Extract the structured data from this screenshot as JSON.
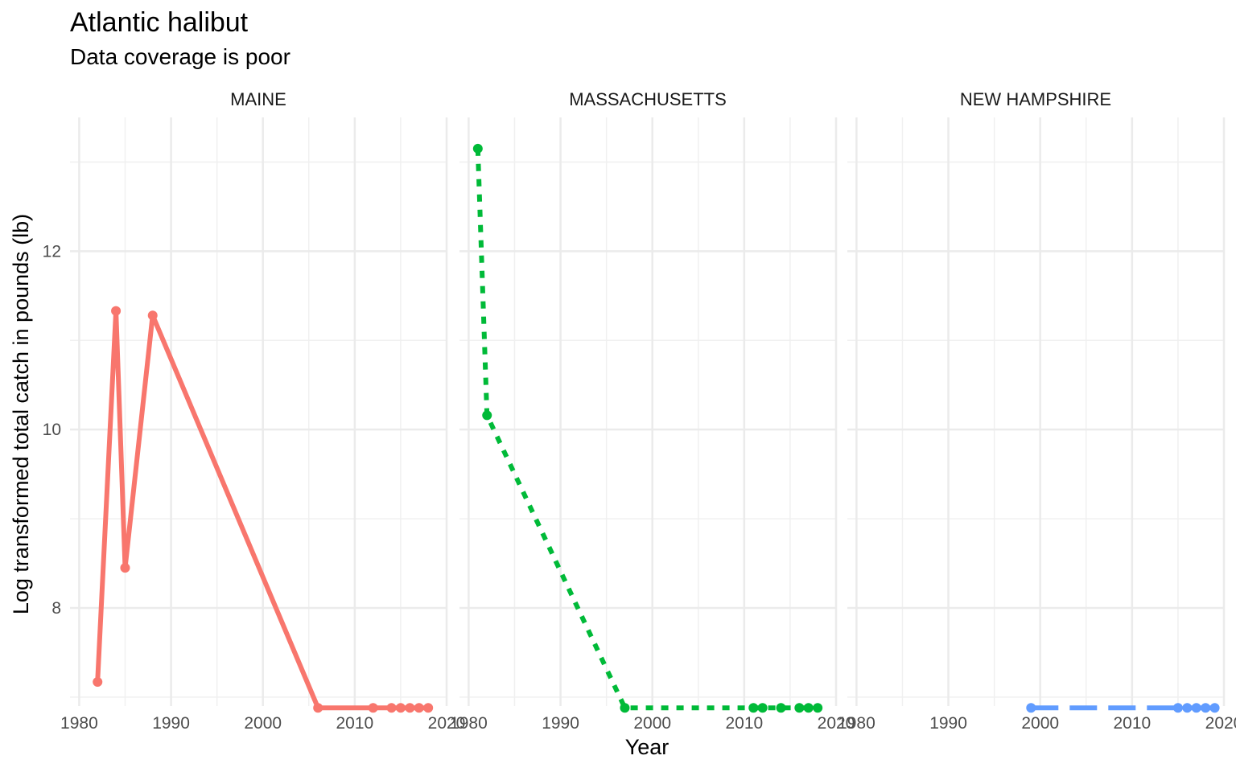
{
  "chart_data": {
    "type": "line",
    "title": "Atlantic halibut",
    "subtitle": "Data coverage is poor",
    "xlabel": "Year",
    "ylabel": "Log transformed  total catch in pounds (lb)",
    "xlim": [
      1979,
      2020
    ],
    "ylim": [
      6.9,
      13.5
    ],
    "x_ticks": [
      1980,
      1990,
      2000,
      2010,
      2020
    ],
    "y_ticks": [
      8,
      10,
      12
    ],
    "grid": true,
    "legend": "none",
    "panels": [
      {
        "name": "MAINE",
        "color": "#F8766D",
        "linetype": "solid",
        "points": [
          {
            "x": 1982,
            "y": 7.17
          },
          {
            "x": 1984,
            "y": 11.33
          },
          {
            "x": 1985,
            "y": 8.45
          },
          {
            "x": 1988,
            "y": 11.28
          },
          {
            "x": 2006,
            "y": 6.88
          },
          {
            "x": 2012,
            "y": 6.88
          },
          {
            "x": 2014,
            "y": 6.88
          },
          {
            "x": 2015,
            "y": 6.88
          },
          {
            "x": 2016,
            "y": 6.88
          },
          {
            "x": 2017,
            "y": 6.88
          },
          {
            "x": 2018,
            "y": 6.88
          }
        ]
      },
      {
        "name": "MASSACHUSETTS",
        "color": "#00BA38",
        "linetype": "dotted",
        "points": [
          {
            "x": 1981,
            "y": 13.15
          },
          {
            "x": 1982,
            "y": 10.16
          },
          {
            "x": 1997,
            "y": 6.88
          },
          {
            "x": 2011,
            "y": 6.88
          },
          {
            "x": 2012,
            "y": 6.88
          },
          {
            "x": 2014,
            "y": 6.88
          },
          {
            "x": 2016,
            "y": 6.88
          },
          {
            "x": 2017,
            "y": 6.88
          },
          {
            "x": 2018,
            "y": 6.88
          }
        ]
      },
      {
        "name": "NEW HAMPSHIRE",
        "color": "#619CFF",
        "linetype": "dashed",
        "points": [
          {
            "x": 1999,
            "y": 6.88
          },
          {
            "x": 2015,
            "y": 6.88
          },
          {
            "x": 2016,
            "y": 6.88
          },
          {
            "x": 2017,
            "y": 6.88
          },
          {
            "x": 2018,
            "y": 6.88
          },
          {
            "x": 2019,
            "y": 6.88
          }
        ]
      }
    ]
  }
}
